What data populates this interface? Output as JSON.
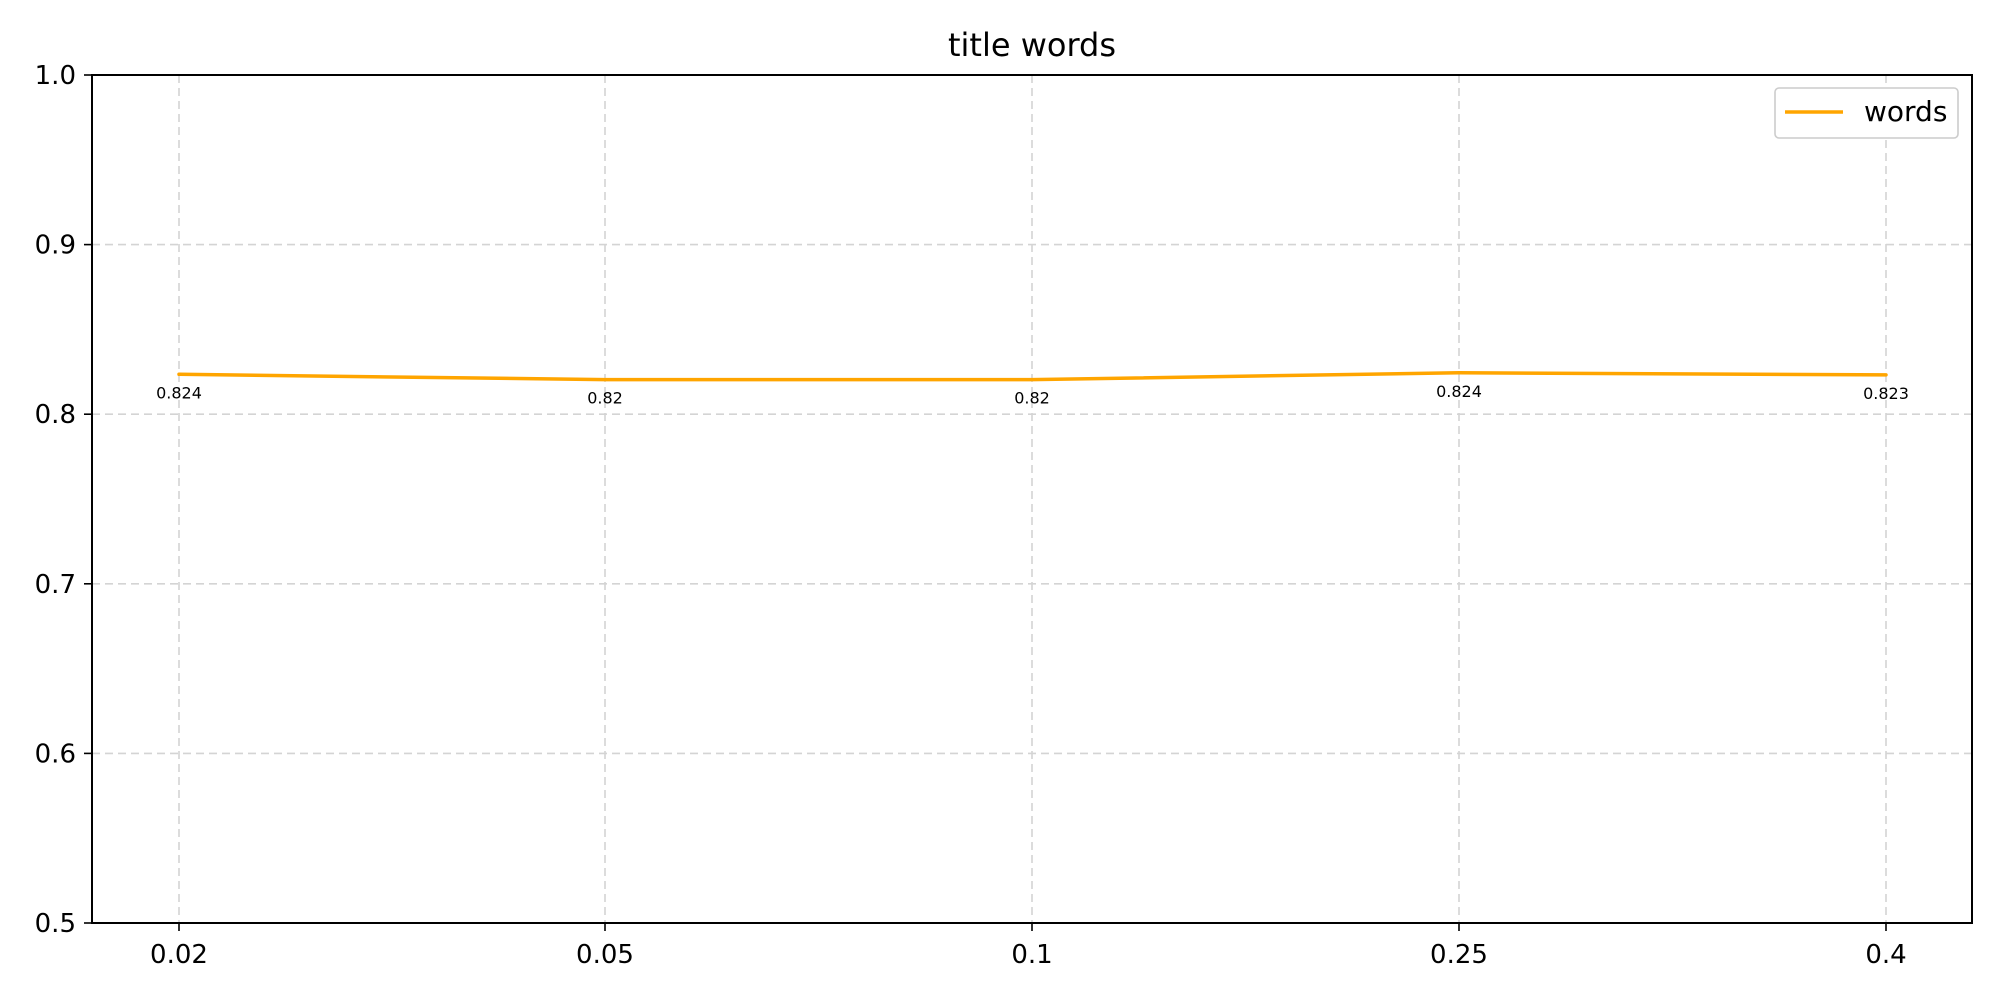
{
  "chart_data": {
    "type": "line",
    "title": "title words",
    "xlabel": "",
    "ylabel": "",
    "categories": [
      "0.02",
      "0.05",
      "0.1",
      "0.25",
      "0.4"
    ],
    "ylim": [
      0.5,
      1.0
    ],
    "yticks": [
      "0.5",
      "0.6",
      "0.7",
      "0.8",
      "0.9",
      "1.0"
    ],
    "grid": true,
    "legend_position": "top-right",
    "series": [
      {
        "name": "words",
        "color": "#FFA500",
        "values": [
          0.8235,
          0.8204,
          0.8204,
          0.8244,
          0.8232
        ],
        "labels": [
          "0.824",
          "0.82",
          "0.82",
          "0.824",
          "0.823"
        ]
      }
    ]
  }
}
